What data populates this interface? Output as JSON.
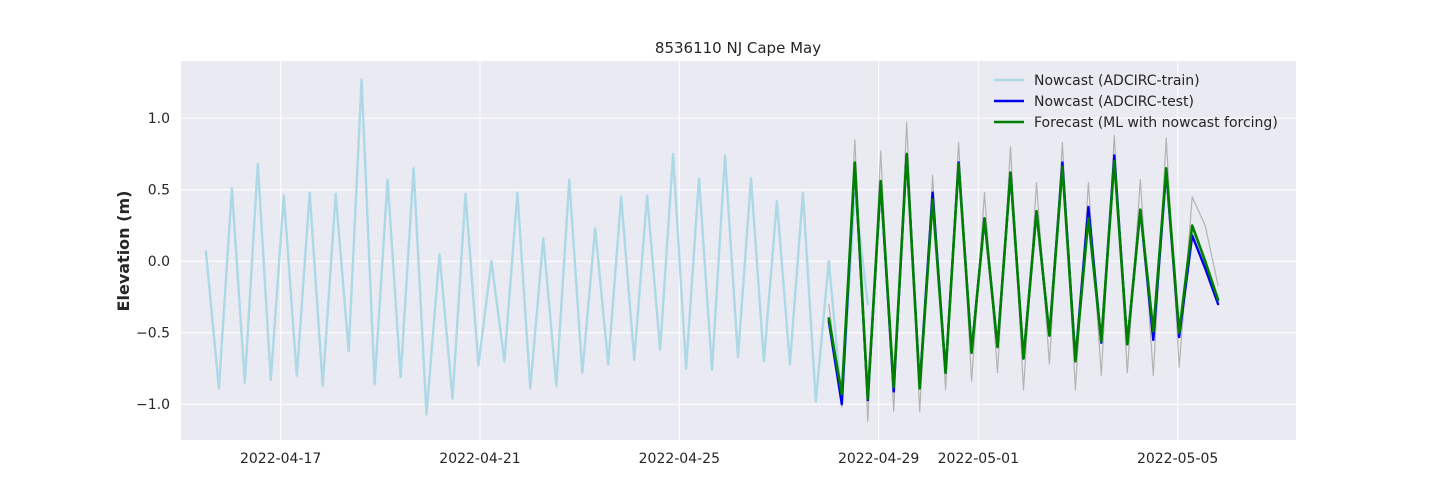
{
  "chart_data": {
    "type": "line",
    "title": "8536110 NJ Cape May",
    "xlabel": "",
    "ylabel": "Elevation (m)",
    "x_type": "date",
    "xlim": [
      "2022-04-15T00:00",
      "2022-05-07T09:00"
    ],
    "ylim": [
      -1.25,
      1.4
    ],
    "xticks": [
      "2022-04-17",
      "2022-04-21",
      "2022-04-25",
      "2022-04-29",
      "2022-05-01",
      "2022-05-05"
    ],
    "yticks": [
      1.0,
      0.5,
      0.0,
      -0.5,
      -1.0
    ],
    "ytick_labels": [
      "1.0",
      "0.5",
      "0.0",
      "−0.5",
      "−1.0"
    ],
    "grid": true,
    "legend_position": "top-right",
    "series": [
      {
        "name": "",
        "role": "observed",
        "color": "#b3b3b3",
        "x": [
          "2022-04-28T00:00",
          "2022-04-28T06:15",
          "2022-04-28T12:30",
          "2022-04-28T18:45",
          "2022-04-29T01:00",
          "2022-04-29T07:15",
          "2022-04-29T13:30",
          "2022-04-29T19:45",
          "2022-04-30T02:00",
          "2022-04-30T08:15",
          "2022-04-30T14:30",
          "2022-04-30T20:45",
          "2022-05-01T03:00",
          "2022-05-01T09:15",
          "2022-05-01T15:30",
          "2022-05-01T21:45",
          "2022-05-02T04:00",
          "2022-05-02T10:15",
          "2022-05-02T16:30",
          "2022-05-02T22:45",
          "2022-05-03T05:00",
          "2022-05-03T11:15",
          "2022-05-03T17:30",
          "2022-05-03T23:45",
          "2022-05-04T06:00",
          "2022-05-04T12:15",
          "2022-05-04T18:30",
          "2022-05-05T00:45",
          "2022-05-05T07:00",
          "2022-05-05T13:15",
          "2022-05-05T19:30"
        ],
        "y": [
          -0.3,
          -1.02,
          0.85,
          -1.12,
          0.77,
          -1.05,
          0.97,
          -1.05,
          0.6,
          -0.9,
          0.83,
          -0.84,
          0.48,
          -0.78,
          0.8,
          -0.9,
          0.55,
          -0.72,
          0.83,
          -0.9,
          0.55,
          -0.8,
          0.88,
          -0.78,
          0.57,
          -0.8,
          0.86,
          -0.74,
          0.45,
          0.25,
          -0.17
        ]
      },
      {
        "name": "Nowcast (ADCIRC-train)",
        "role": "train",
        "color": "#add8e6",
        "x": [
          "2022-04-15T12:00",
          "2022-04-15T18:15",
          "2022-04-16T00:30",
          "2022-04-16T06:45",
          "2022-04-16T13:00",
          "2022-04-16T19:15",
          "2022-04-17T01:30",
          "2022-04-17T07:45",
          "2022-04-17T14:00",
          "2022-04-17T20:15",
          "2022-04-18T02:30",
          "2022-04-18T08:45",
          "2022-04-18T15:00",
          "2022-04-18T21:15",
          "2022-04-19T03:30",
          "2022-04-19T09:45",
          "2022-04-19T16:00",
          "2022-04-19T22:15",
          "2022-04-20T04:30",
          "2022-04-20T10:45",
          "2022-04-20T17:00",
          "2022-04-20T23:15",
          "2022-04-21T05:30",
          "2022-04-21T11:45",
          "2022-04-21T18:00",
          "2022-04-22T00:15",
          "2022-04-22T06:30",
          "2022-04-22T12:45",
          "2022-04-22T19:00",
          "2022-04-23T01:15",
          "2022-04-23T07:30",
          "2022-04-23T13:45",
          "2022-04-23T20:00",
          "2022-04-24T02:15",
          "2022-04-24T08:30",
          "2022-04-24T14:45",
          "2022-04-24T21:00",
          "2022-04-25T03:15",
          "2022-04-25T09:30",
          "2022-04-25T15:45",
          "2022-04-25T22:00",
          "2022-04-26T04:15",
          "2022-04-26T10:30",
          "2022-04-26T16:45",
          "2022-04-26T23:00",
          "2022-04-27T05:15",
          "2022-04-27T11:30",
          "2022-04-27T17:45",
          "2022-04-28T00:00",
          "2022-04-28T06:15",
          "2022-04-28T12:30",
          "2022-04-28T18:45"
        ],
        "y": [
          0.07,
          -0.89,
          0.51,
          -0.85,
          0.68,
          -0.83,
          0.46,
          -0.8,
          0.48,
          -0.87,
          0.47,
          -0.63,
          1.27,
          -0.86,
          0.57,
          -0.81,
          0.65,
          -1.07,
          0.05,
          -0.96,
          0.47,
          -0.73,
          0.0,
          -0.7,
          0.48,
          -0.89,
          0.16,
          -0.87,
          0.57,
          -0.78,
          0.23,
          -0.72,
          0.45,
          -0.69,
          0.46,
          -0.62,
          0.75,
          -0.75,
          0.58,
          -0.76,
          0.74,
          -0.67,
          0.58,
          -0.7,
          0.42,
          -0.72,
          0.48,
          -0.98,
          0.0,
          -0.99,
          0.47,
          -0.3
        ]
      },
      {
        "name": "Nowcast (ADCIRC-test)",
        "role": "test",
        "color": "#0000ee",
        "x": [
          "2022-04-28T00:00",
          "2022-04-28T06:15",
          "2022-04-28T12:30",
          "2022-04-28T18:45",
          "2022-04-29T01:00",
          "2022-04-29T07:15",
          "2022-04-29T13:30",
          "2022-04-29T19:45",
          "2022-04-30T02:00",
          "2022-04-30T08:15",
          "2022-04-30T14:30",
          "2022-04-30T20:45",
          "2022-05-01T03:00",
          "2022-05-01T09:15",
          "2022-05-01T15:30",
          "2022-05-01T21:45",
          "2022-05-02T04:00",
          "2022-05-02T10:15",
          "2022-05-02T16:30",
          "2022-05-02T22:45",
          "2022-05-03T05:00",
          "2022-05-03T11:15",
          "2022-05-03T17:30",
          "2022-05-03T23:45",
          "2022-05-04T06:00",
          "2022-05-04T12:15",
          "2022-05-04T18:30",
          "2022-05-05T00:45",
          "2022-05-05T07:00",
          "2022-05-05T13:15",
          "2022-05-05T19:30"
        ],
        "y": [
          -0.42,
          -1.0,
          0.68,
          -0.97,
          0.55,
          -0.91,
          0.75,
          -0.87,
          0.48,
          -0.78,
          0.69,
          -0.63,
          0.3,
          -0.6,
          0.62,
          -0.68,
          0.35,
          -0.52,
          0.69,
          -0.69,
          0.38,
          -0.57,
          0.74,
          -0.58,
          0.36,
          -0.55,
          0.63,
          -0.53,
          0.18,
          -0.05,
          -0.3
        ]
      },
      {
        "name": "Forecast (ML with nowcast forcing)",
        "role": "forecast",
        "color": "#008000",
        "x": [
          "2022-04-28T00:00",
          "2022-04-28T06:15",
          "2022-04-28T12:30",
          "2022-04-28T18:45",
          "2022-04-29T01:00",
          "2022-04-29T07:15",
          "2022-04-29T13:30",
          "2022-04-29T19:45",
          "2022-04-30T02:00",
          "2022-04-30T08:15",
          "2022-04-30T14:30",
          "2022-04-30T20:45",
          "2022-05-01T03:00",
          "2022-05-01T09:15",
          "2022-05-01T15:30",
          "2022-05-01T21:45",
          "2022-05-02T04:00",
          "2022-05-02T10:15",
          "2022-05-02T16:30",
          "2022-05-02T22:45",
          "2022-05-03T05:00",
          "2022-05-03T11:15",
          "2022-05-03T17:30",
          "2022-05-03T23:45",
          "2022-05-04T06:00",
          "2022-05-04T12:15",
          "2022-05-04T18:30",
          "2022-05-05T00:45",
          "2022-05-05T07:00",
          "2022-05-05T13:15",
          "2022-05-05T19:30"
        ],
        "y": [
          -0.4,
          -0.93,
          0.69,
          -0.96,
          0.56,
          -0.88,
          0.75,
          -0.89,
          0.43,
          -0.78,
          0.68,
          -0.64,
          0.3,
          -0.6,
          0.62,
          -0.68,
          0.35,
          -0.52,
          0.66,
          -0.7,
          0.3,
          -0.56,
          0.7,
          -0.58,
          0.36,
          -0.49,
          0.65,
          -0.5,
          0.25,
          0.0,
          -0.27
        ]
      }
    ]
  }
}
